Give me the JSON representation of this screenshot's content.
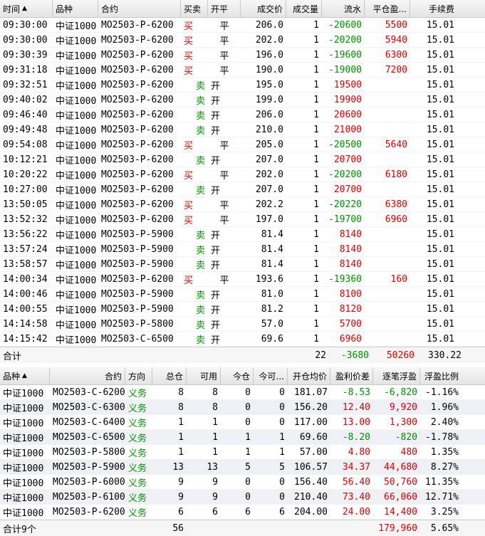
{
  "trades": {
    "columns": [
      "时间",
      "品种",
      "合约",
      "买卖",
      "开平",
      "成交价",
      "成交量",
      "流水",
      "平仓盈...",
      "手续费"
    ],
    "sort_indicator": "▲",
    "rows": [
      [
        "09:30:00",
        "中证1000",
        "MO2503-P-6200",
        "买",
        "平",
        "206.0",
        "1",
        "-20600",
        "5500",
        "15.01"
      ],
      [
        "09:30:00",
        "中证1000",
        "MO2503-P-6200",
        "买",
        "平",
        "202.0",
        "1",
        "-20200",
        "5940",
        "15.01"
      ],
      [
        "09:30:39",
        "中证1000",
        "MO2503-P-6200",
        "买",
        "平",
        "196.0",
        "1",
        "-19600",
        "6300",
        "15.01"
      ],
      [
        "09:31:18",
        "中证1000",
        "MO2503-P-6200",
        "买",
        "平",
        "190.0",
        "1",
        "-19000",
        "7200",
        "15.01"
      ],
      [
        "09:32:51",
        "中证1000",
        "MO2503-P-6200",
        "卖",
        "开",
        "195.0",
        "1",
        "19500",
        "",
        "15.01"
      ],
      [
        "09:40:02",
        "中证1000",
        "MO2503-P-6200",
        "卖",
        "开",
        "199.0",
        "1",
        "19900",
        "",
        "15.01"
      ],
      [
        "09:46:40",
        "中证1000",
        "MO2503-P-6200",
        "卖",
        "开",
        "206.0",
        "1",
        "20600",
        "",
        "15.01"
      ],
      [
        "09:49:48",
        "中证1000",
        "MO2503-P-6200",
        "卖",
        "开",
        "210.0",
        "1",
        "21000",
        "",
        "15.01"
      ],
      [
        "09:54:08",
        "中证1000",
        "MO2503-P-6200",
        "买",
        "平",
        "205.0",
        "1",
        "-20500",
        "5640",
        "15.01"
      ],
      [
        "10:12:21",
        "中证1000",
        "MO2503-P-6200",
        "卖",
        "开",
        "207.0",
        "1",
        "20700",
        "",
        "15.01"
      ],
      [
        "10:20:22",
        "中证1000",
        "MO2503-P-6200",
        "买",
        "平",
        "202.0",
        "1",
        "-20200",
        "6180",
        "15.01"
      ],
      [
        "10:27:00",
        "中证1000",
        "MO2503-P-6200",
        "卖",
        "开",
        "207.0",
        "1",
        "20700",
        "",
        "15.01"
      ],
      [
        "13:50:05",
        "中证1000",
        "MO2503-P-6200",
        "买",
        "平",
        "202.2",
        "1",
        "-20220",
        "6380",
        "15.01"
      ],
      [
        "13:52:32",
        "中证1000",
        "MO2503-P-6200",
        "买",
        "平",
        "197.0",
        "1",
        "-19700",
        "6960",
        "15.01"
      ],
      [
        "13:56:22",
        "中证1000",
        "MO2503-P-5900",
        "卖",
        "开",
        "81.4",
        "1",
        "8140",
        "",
        "15.01"
      ],
      [
        "13:57:24",
        "中证1000",
        "MO2503-P-5900",
        "卖",
        "开",
        "81.4",
        "1",
        "8140",
        "",
        "15.01"
      ],
      [
        "13:58:57",
        "中证1000",
        "MO2503-P-5900",
        "卖",
        "开",
        "81.4",
        "1",
        "8140",
        "",
        "15.01"
      ],
      [
        "14:00:34",
        "中证1000",
        "MO2503-P-6200",
        "买",
        "平",
        "193.6",
        "1",
        "-19360",
        "160",
        "15.01"
      ],
      [
        "14:00:46",
        "中证1000",
        "MO2503-P-5900",
        "卖",
        "开",
        "81.0",
        "1",
        "8100",
        "",
        "15.01"
      ],
      [
        "14:00:55",
        "中证1000",
        "MO2503-P-5900",
        "卖",
        "开",
        "81.2",
        "1",
        "8120",
        "",
        "15.01"
      ],
      [
        "14:14:58",
        "中证1000",
        "MO2503-P-5800",
        "卖",
        "开",
        "57.0",
        "1",
        "5700",
        "",
        "15.01"
      ],
      [
        "14:15:42",
        "中证1000",
        "MO2503-C-6500",
        "卖",
        "开",
        "69.6",
        "1",
        "6960",
        "",
        "15.01"
      ]
    ],
    "total": {
      "label": "合计",
      "volume": "22",
      "flow": "-3680",
      "close_pnl": "50260",
      "fee": "330.22"
    }
  },
  "positions": {
    "columns": [
      "品种",
      "合约",
      "方向",
      "总仓",
      "可用",
      "今仓",
      "今可...",
      "开仓均价",
      "盈利价差",
      "逐笔浮盈",
      "浮盈比例"
    ],
    "sort_indicator": "▲",
    "rows": [
      [
        "中证1000",
        "MO2503-C-6200",
        "义务",
        "8",
        "8",
        "0",
        "0",
        "181.07",
        "-8.53",
        "-6,820",
        "-1.16%"
      ],
      [
        "中证1000",
        "MO2503-C-6300",
        "义务",
        "8",
        "8",
        "0",
        "0",
        "156.20",
        "12.40",
        "9,920",
        "1.96%"
      ],
      [
        "中证1000",
        "MO2503-C-6400",
        "义务",
        "1",
        "1",
        "0",
        "0",
        "117.00",
        "13.00",
        "1,300",
        "2.40%"
      ],
      [
        "中证1000",
        "MO2503-C-6500",
        "义务",
        "1",
        "1",
        "1",
        "1",
        "69.60",
        "-8.20",
        "-820",
        "-1.78%"
      ],
      [
        "中证1000",
        "MO2503-P-5800",
        "义务",
        "1",
        "1",
        "1",
        "1",
        "57.00",
        "4.80",
        "480",
        "1.35%"
      ],
      [
        "中证1000",
        "MO2503-P-5900",
        "义务",
        "13",
        "13",
        "5",
        "5",
        "106.57",
        "34.37",
        "44,680",
        "8.27%"
      ],
      [
        "中证1000",
        "MO2503-P-6000",
        "义务",
        "9",
        "9",
        "0",
        "0",
        "156.40",
        "56.40",
        "50,760",
        "11.35%"
      ],
      [
        "中证1000",
        "MO2503-P-6100",
        "义务",
        "9",
        "9",
        "0",
        "0",
        "210.40",
        "73.40",
        "66,060",
        "12.71%"
      ],
      [
        "中证1000",
        "MO2503-P-6200",
        "义务",
        "6",
        "6",
        "6",
        "6",
        "204.00",
        "24.00",
        "14,400",
        "3.25%"
      ]
    ],
    "total": {
      "label": "合计9个",
      "total_pos": "56",
      "float_pnl": "179,960",
      "ratio": "5.65%"
    }
  },
  "colors": {
    "buy": "#e00000",
    "sell": "#009000",
    "negative": "#009000",
    "positive": "#e00000"
  }
}
